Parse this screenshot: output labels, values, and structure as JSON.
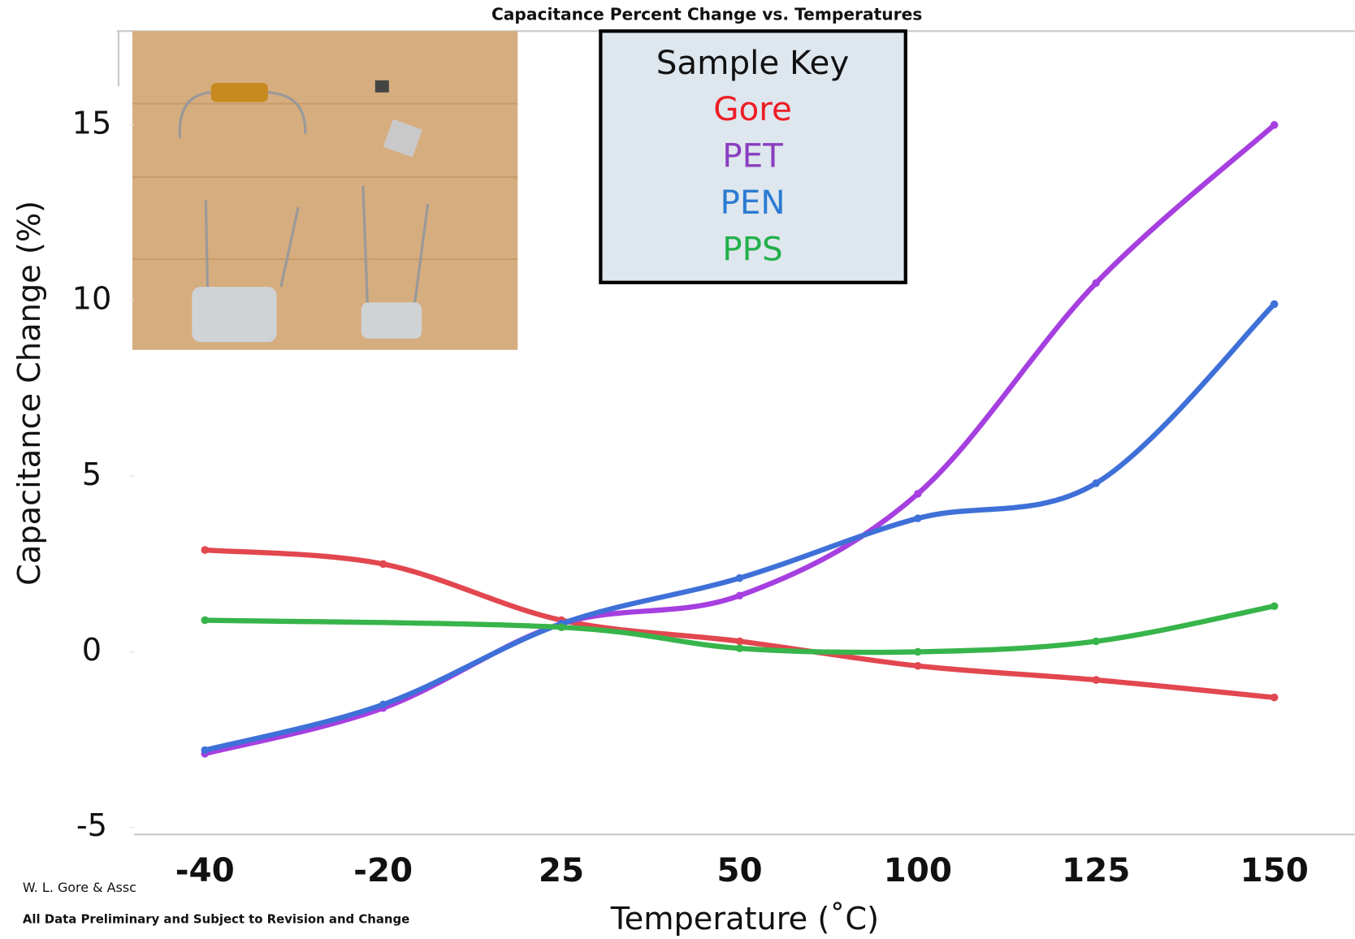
{
  "chart_data": {
    "type": "line",
    "title": "Capacitance Percent Change vs. Temperatures",
    "xlabel": "Temperature (˚C)",
    "ylabel": "Capacitance Change (%)",
    "categories": [
      "-40",
      "-20",
      "25",
      "50",
      "100",
      "125",
      "150"
    ],
    "ylim": [
      -5.2,
      17.5
    ],
    "yticks": [
      -5,
      0,
      5,
      10,
      15
    ],
    "legend_title": "Sample Key",
    "legend": "top-center",
    "series": [
      {
        "name": "Gore",
        "color": "#e2474f",
        "label_color": "#ee1c24",
        "values": [
          2.9,
          2.5,
          0.9,
          0.3,
          -0.4,
          -0.8,
          -1.3
        ]
      },
      {
        "name": "PET",
        "color": "#a63fe0",
        "label_color": "#8a3ec0",
        "values": [
          -2.9,
          -1.6,
          0.8,
          1.6,
          4.5,
          10.5,
          15.0
        ]
      },
      {
        "name": "PEN",
        "color": "#3f70d8",
        "label_color": "#2b7bd2",
        "values": [
          -2.8,
          -1.5,
          0.8,
          2.1,
          3.8,
          4.8,
          9.9
        ]
      },
      {
        "name": "PPS",
        "color": "#37b44a",
        "label_color": "#22b04a",
        "values": [
          0.9,
          null,
          0.7,
          0.1,
          0.0,
          0.3,
          1.3
        ]
      }
    ],
    "footer": [
      "W. L. Gore & Assc",
      "All Data Preliminary and Subject to Revision and Change"
    ]
  }
}
